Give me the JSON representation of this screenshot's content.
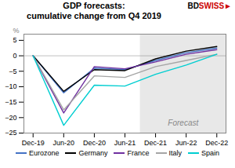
{
  "chart_data": {
    "type": "line",
    "title": "GDP forecasts:",
    "subtitle": "cumulative change from Q4 2019",
    "y_label": "%",
    "categories": [
      "Dec-19",
      "Jun-20",
      "Dec-20",
      "Jun-21",
      "Dec-21",
      "Jun-22",
      "Dec-22"
    ],
    "series": [
      {
        "name": "Eurozone",
        "color": "#4472C4",
        "values": [
          0,
          -12.0,
          -4.0,
          -4.5,
          -1.5,
          1.0,
          2.5
        ]
      },
      {
        "name": "Germany",
        "color": "#000000",
        "values": [
          0,
          -11.5,
          -4.5,
          -4.8,
          -1.0,
          1.5,
          3.0
        ]
      },
      {
        "name": "France",
        "color": "#7030A0",
        "values": [
          0,
          -18.5,
          -3.5,
          -4.2,
          -2.0,
          0.5,
          2.0
        ]
      },
      {
        "name": "Italy",
        "color": "#A5A5A5",
        "values": [
          0,
          -17.5,
          -6.5,
          -7.0,
          -3.5,
          -1.5,
          0.5
        ]
      },
      {
        "name": "Spain",
        "color": "#00CED1",
        "values": [
          0,
          -22.5,
          -9.5,
          -9.8,
          -6.0,
          -3.0,
          0.5
        ]
      }
    ],
    "ylim": [
      -25,
      7
    ],
    "yticks": [
      -25,
      -20,
      -15,
      -10,
      -5,
      0,
      5
    ],
    "grid": false,
    "legend": "bottom",
    "annotations": [
      {
        "text": "Forecast",
        "from": "Dec-21",
        "color": "#E8E8E8"
      },
      {
        "text": "BD",
        "color": "#000000"
      },
      {
        "text": "SWISS",
        "color": "#CC0000"
      },
      {
        "text": "►",
        "color": "#CC0000"
      }
    ]
  }
}
